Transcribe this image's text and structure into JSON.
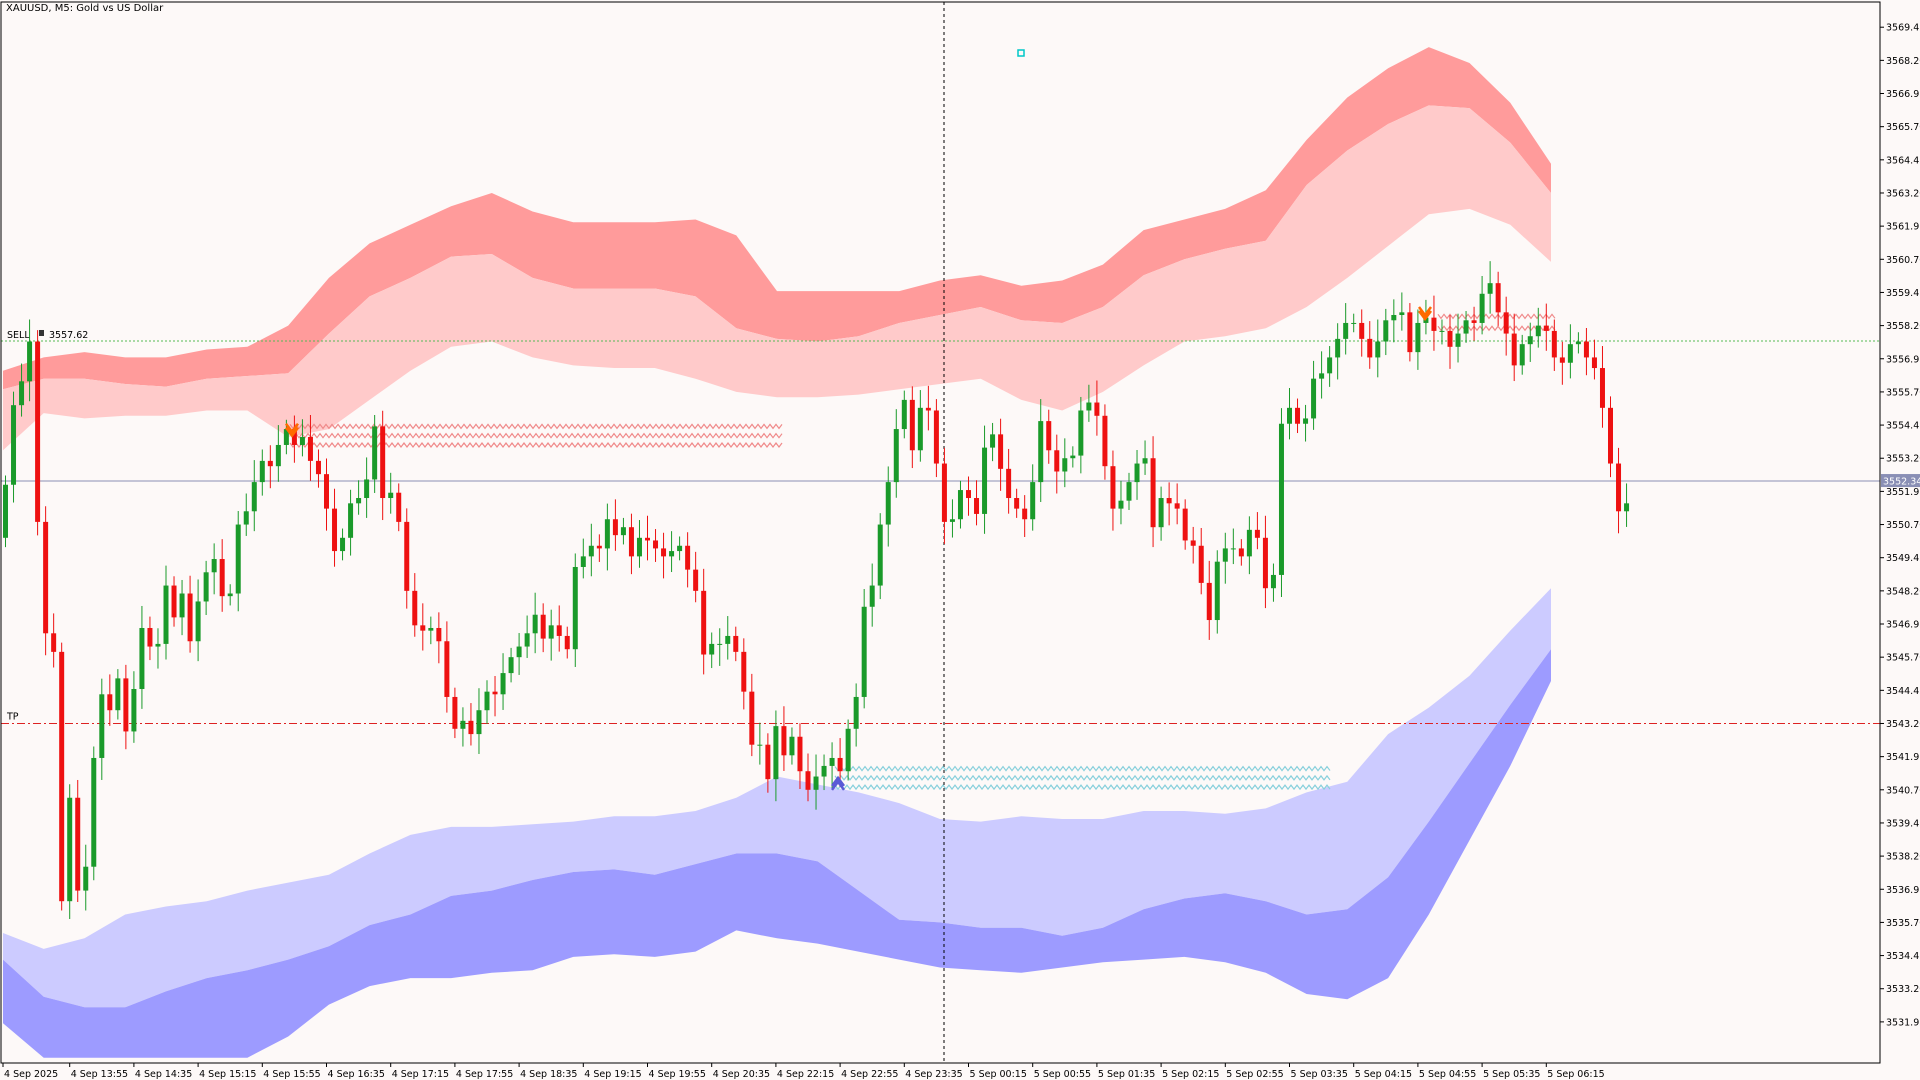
{
  "window": {
    "title": "XAUUSD, M5:  Gold vs US Dollar"
  },
  "colors": {
    "background": "#fdf9f8",
    "frame": "#000000",
    "bull": "#1a9a2a",
    "bear": "#ee1111",
    "upper_band_outer": "#ff9b9b",
    "upper_band_inner": "#ffcaca",
    "lower_band_inner": "#cccbff",
    "lower_band_outer": "#9d9bff",
    "sell_line": "#55bb55",
    "tp_line": "#dd2222",
    "price_line": "#8a8fb5",
    "current_price_bg": "#8a8fb5",
    "sell_zone": "#f08a8a",
    "buy_zone": "#88d0dc",
    "sell_arrow": "#ff6a00",
    "buy_arrow": "#5a5ad6",
    "marker": "#00c8c8"
  },
  "chart_data": {
    "type": "candlestick",
    "symbol": "XAUUSD",
    "timeframe": "M5",
    "description": "Gold vs US Dollar",
    "ylim": [
      3530.4,
      3570.4
    ],
    "y_ticks": [
      "3569.45",
      "3568.20",
      "3566.95",
      "3565.70",
      "3564.45",
      "3563.20",
      "3561.95",
      "3560.70",
      "3559.45",
      "3558.20",
      "3556.95",
      "3555.70",
      "3554.45",
      "3553.20",
      "3551.95",
      "3550.70",
      "3549.45",
      "3548.20",
      "3546.95",
      "3545.70",
      "3544.45",
      "3543.20",
      "3541.95",
      "3540.70",
      "3539.45",
      "3538.20",
      "3536.95",
      "3535.70",
      "3534.45",
      "3533.20",
      "3531.95"
    ],
    "x_tick_labels": [
      "4 Sep 2025",
      "4 Sep 13:55",
      "4 Sep 14:35",
      "4 Sep 15:15",
      "4 Sep 15:55",
      "4 Sep 16:35",
      "4 Sep 17:15",
      "4 Sep 17:55",
      "4 Sep 18:35",
      "4 Sep 19:15",
      "4 Sep 19:55",
      "4 Sep 20:35",
      "4 Sep 22:15",
      "4 Sep 22:55",
      "4 Sep 23:35",
      "5 Sep 00:15",
      "5 Sep 00:55",
      "5 Sep 01:35",
      "5 Sep 02:15",
      "5 Sep 02:55",
      "5 Sep 03:35",
      "5 Sep 04:15",
      "5 Sep 04:55",
      "5 Sep 05:35",
      "5 Sep 06:15"
    ],
    "candles_per_x_tick": 8,
    "candle_closes": [
      3552.2,
      3555.2,
      3556.1,
      3557.6,
      3550.8,
      3546.6,
      3545.9,
      3536.5,
      3540.4,
      3536.9,
      3537.8,
      3541.9,
      3544.3,
      3543.7,
      3544.9,
      3542.9,
      3544.5,
      3546.8,
      3546.1,
      3546.2,
      3548.4,
      3547.2,
      3548.1,
      3546.3,
      3547.8,
      3548.9,
      3549.4,
      3548.0,
      3548.1,
      3550.7,
      3551.2,
      3552.3,
      3553.1,
      3552.9,
      3553.7,
      3554.3,
      3553.7,
      3554.0,
      3553.1,
      3552.6,
      3551.3,
      3549.7,
      3550.2,
      3551.5,
      3551.7,
      3552.4,
      3554.4,
      3551.7,
      3551.9,
      3550.8,
      3548.2,
      3546.9,
      3546.7,
      3546.8,
      3546.3,
      3544.2,
      3543.0,
      3543.3,
      3542.8,
      3543.7,
      3544.4,
      3544.3,
      3545.1,
      3545.7,
      3546.1,
      3546.6,
      3547.3,
      3546.4,
      3546.9,
      3546.5,
      3546.0,
      3549.1,
      3549.5,
      3549.9,
      3549.8,
      3550.9,
      3550.3,
      3550.6,
      3549.5,
      3550.2,
      3550.1,
      3549.8,
      3549.5,
      3549.7,
      3549.9,
      3549.0,
      3548.2,
      3545.8,
      3546.2,
      3546.2,
      3546.5,
      3545.9,
      3544.4,
      3542.4,
      3542.4,
      3541.1,
      3543.1,
      3542.0,
      3542.7,
      3541.4,
      3540.7,
      3541.2,
      3541.6,
      3541.9,
      3541.4,
      3543.0,
      3544.2,
      3547.6,
      3548.4,
      3550.7,
      3552.3,
      3554.3,
      3555.4,
      3553.5,
      3555.1,
      3555.0,
      3553.0,
      3550.8,
      3550.9,
      3552.0,
      3551.7,
      3551.1,
      3553.6,
      3554.1,
      3552.8,
      3551.7,
      3551.3,
      3550.9,
      3552.3,
      3554.6,
      3553.5,
      3552.7,
      3553.2,
      3553.3,
      3555.0,
      3555.3,
      3554.8,
      3552.9,
      3551.3,
      3551.6,
      3552.3,
      3553.0,
      3553.2,
      3550.6,
      3551.7,
      3551.5,
      3551.3,
      3550.1,
      3549.9,
      3548.5,
      3547.1,
      3549.3,
      3549.8,
      3549.8,
      3549.5,
      3550.5,
      3550.2,
      3548.3,
      3548.8,
      3554.5,
      3555.1,
      3554.5,
      3554.7,
      3556.2,
      3556.4,
      3557.0,
      3557.7,
      3558.3,
      3558.3,
      3557.7,
      3557.0,
      3557.6,
      3558.4,
      3558.6,
      3558.7,
      3557.2,
      3558.3,
      3558.5,
      3558.0,
      3558.0,
      3557.4,
      3557.9,
      3558.4,
      3558.3,
      3559.4,
      3559.8,
      3558.7,
      3557.9,
      3556.7,
      3557.5,
      3557.8,
      3558.2,
      3558.0,
      3557.0,
      3556.8,
      3557.5,
      3557.6,
      3557.0,
      3556.6,
      3555.1,
      3553.0,
      3551.2,
      3551.5
    ],
    "current_price": "3552.34",
    "current_price_value": 3552.34,
    "sell_level": 3557.62,
    "sell_label": "SELL",
    "sell_price_label": "3557.62",
    "tp_level": 3543.2,
    "tp_label": "TP",
    "vertical_marker_time": "4 Sep 23:35",
    "upper_band": {
      "top": [
        3556.5,
        3557.0,
        3557.2,
        3557.0,
        3557.0,
        3557.3,
        3557.4,
        3558.2,
        3560.0,
        3561.3,
        3562.0,
        3562.7,
        3563.2,
        3562.5,
        3562.1,
        3562.1,
        3562.1,
        3562.2,
        3561.6,
        3559.5,
        3559.5,
        3559.5,
        3559.5,
        3559.9,
        3560.1,
        3559.7,
        3559.9,
        3560.5,
        3561.8,
        3562.2,
        3562.6,
        3563.3,
        3565.2,
        3566.8,
        3567.9,
        3568.7,
        3568.1,
        3566.6,
        3564.3
      ],
      "middle": [
        3555.8,
        3556.2,
        3556.2,
        3556.0,
        3555.9,
        3556.2,
        3556.3,
        3556.4,
        3557.9,
        3559.3,
        3560.0,
        3560.8,
        3560.9,
        3560.0,
        3559.6,
        3559.6,
        3559.6,
        3559.3,
        3558.1,
        3557.7,
        3557.6,
        3557.8,
        3558.3,
        3558.6,
        3558.9,
        3558.4,
        3558.3,
        3558.9,
        3560.1,
        3560.7,
        3561.1,
        3561.4,
        3563.5,
        3564.8,
        3565.8,
        3566.5,
        3566.4,
        3565.1,
        3563.2
      ],
      "bottom": [
        3553.5,
        3554.9,
        3554.7,
        3554.8,
        3554.8,
        3555.0,
        3555.0,
        3554.0,
        3554.3,
        3555.4,
        3556.5,
        3557.4,
        3557.6,
        3557.0,
        3556.7,
        3556.6,
        3556.6,
        3556.2,
        3555.7,
        3555.5,
        3555.5,
        3555.6,
        3555.8,
        3556.0,
        3556.2,
        3555.4,
        3555.0,
        3555.7,
        3556.7,
        3557.6,
        3557.8,
        3558.1,
        3558.9,
        3560.0,
        3561.2,
        3562.4,
        3562.6,
        3562.0,
        3560.6
      ]
    },
    "lower_band": {
      "top": [
        3535.3,
        3534.7,
        3535.1,
        3536.0,
        3536.3,
        3536.5,
        3536.9,
        3537.2,
        3537.5,
        3538.3,
        3539.0,
        3539.3,
        3539.3,
        3539.4,
        3539.5,
        3539.7,
        3539.7,
        3539.9,
        3540.4,
        3541.2,
        3540.9,
        3540.6,
        3540.2,
        3539.6,
        3539.5,
        3539.7,
        3539.6,
        3539.6,
        3539.9,
        3539.9,
        3539.8,
        3540.0,
        3540.6,
        3541.0,
        3542.8,
        3543.8,
        3545.0,
        3546.7,
        3548.3
      ],
      "middle": [
        3534.3,
        3532.9,
        3532.5,
        3532.5,
        3533.1,
        3533.6,
        3533.9,
        3534.3,
        3534.8,
        3535.6,
        3536.0,
        3536.7,
        3536.9,
        3537.3,
        3537.6,
        3537.7,
        3537.5,
        3537.9,
        3538.3,
        3538.3,
        3538.0,
        3536.9,
        3535.8,
        3535.7,
        3535.5,
        3535.5,
        3535.2,
        3535.5,
        3536.2,
        3536.6,
        3536.8,
        3536.5,
        3536.0,
        3536.2,
        3537.4,
        3539.5,
        3541.7,
        3543.9,
        3546.0
      ],
      "bottom": [
        3531.9,
        3530.6,
        3530.6,
        3530.6,
        3530.6,
        3530.6,
        3530.6,
        3531.4,
        3532.6,
        3533.3,
        3533.6,
        3533.6,
        3533.8,
        3533.9,
        3534.4,
        3534.5,
        3534.4,
        3534.6,
        3535.4,
        3535.1,
        3534.9,
        3534.6,
        3534.3,
        3534.0,
        3533.9,
        3533.8,
        3534.0,
        3534.2,
        3534.3,
        3534.4,
        3534.2,
        3533.8,
        3533.0,
        3532.8,
        3533.6,
        3536.0,
        3538.8,
        3541.6,
        3544.8
      ]
    }
  }
}
